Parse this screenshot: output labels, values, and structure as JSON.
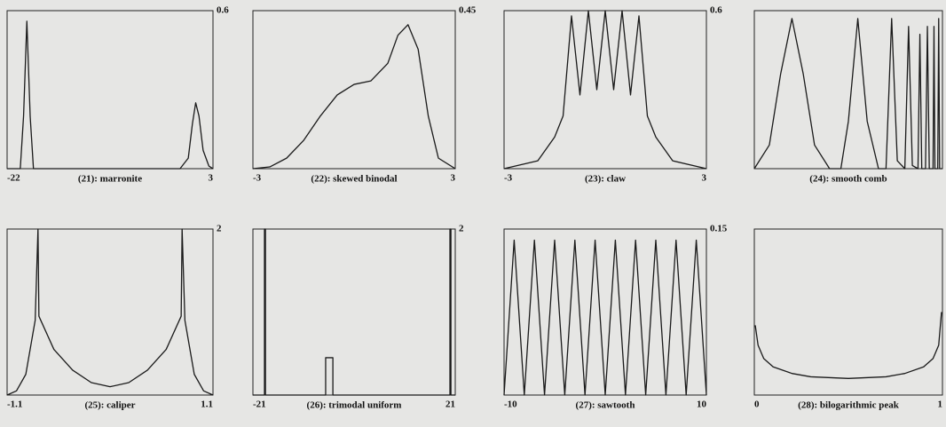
{
  "chart_data": [
    {
      "type": "line",
      "title": "(21): marronite",
      "x": [
        -22,
        -20.4,
        -20.0,
        -19.6,
        -19.2,
        -18.8,
        -17,
        -5,
        -1,
        0,
        0.5,
        0.9,
        1.3,
        1.8,
        2.5,
        3
      ],
      "values": [
        0,
        0,
        0.2,
        0.56,
        0.2,
        0,
        0,
        0,
        0,
        0.04,
        0.17,
        0.25,
        0.2,
        0.07,
        0.01,
        0
      ],
      "xlim": [
        -22,
        3
      ],
      "ylim": [
        0,
        0.6
      ],
      "xticks": [
        -22,
        3
      ],
      "yticks": [
        0.6
      ],
      "color": "#1a1a1a"
    },
    {
      "type": "line",
      "title": "(22): skewed binodal",
      "x": [
        -3,
        -2.5,
        -2,
        -1.5,
        -1,
        -0.5,
        0,
        0.5,
        1,
        1.3,
        1.6,
        1.9,
        2.2,
        2.5,
        3
      ],
      "values": [
        0,
        0.005,
        0.03,
        0.08,
        0.15,
        0.21,
        0.24,
        0.25,
        0.3,
        0.38,
        0.41,
        0.34,
        0.15,
        0.03,
        0
      ],
      "xlim": [
        -3,
        3
      ],
      "ylim": [
        0,
        0.45
      ],
      "xticks": [
        -3,
        3
      ],
      "yticks": [
        0.45
      ],
      "color": "#1a1a1a"
    },
    {
      "type": "line",
      "title": "(23): claw",
      "x": [
        -3,
        -2,
        -1.5,
        -1.25,
        -1,
        -0.75,
        -0.5,
        -0.25,
        0,
        0.25,
        0.5,
        0.75,
        1,
        1.25,
        1.5,
        2,
        3
      ],
      "values": [
        0,
        0.03,
        0.12,
        0.2,
        0.58,
        0.28,
        0.6,
        0.3,
        0.6,
        0.3,
        0.6,
        0.28,
        0.58,
        0.2,
        0.12,
        0.03,
        0
      ],
      "xlim": [
        -3,
        3
      ],
      "ylim": [
        0,
        0.6
      ],
      "xticks": [
        -3,
        3
      ],
      "yticks": [
        0.6
      ],
      "color": "#1a1a1a"
    },
    {
      "type": "line",
      "title": "(24): smooth comb",
      "x": [
        0,
        0.08,
        0.14,
        0.2,
        0.26,
        0.32,
        0.4,
        0.46,
        0.5,
        0.55,
        0.6,
        0.66,
        0.7,
        0.73,
        0.76,
        0.8,
        0.82,
        0.84,
        0.87,
        0.88,
        0.89,
        0.91,
        0.92,
        0.93,
        0.95,
        0.955,
        0.96,
        0.975,
        0.98,
        0.985,
        1
      ],
      "values": [
        0,
        0.15,
        0.6,
        0.95,
        0.6,
        0.15,
        0,
        0,
        0.3,
        0.95,
        0.3,
        0,
        0,
        0.95,
        0.05,
        0,
        0.9,
        0.02,
        0,
        0.85,
        0,
        0,
        0.9,
        0,
        0,
        0.9,
        0,
        0,
        0.95,
        0,
        0
      ],
      "xlim": [
        0,
        1
      ],
      "ylim": [
        0,
        1
      ],
      "color": "#1a1a1a"
    },
    {
      "type": "line",
      "title": "(25): caliper",
      "x": [
        -1.1,
        -1,
        -0.9,
        -0.8,
        -0.77,
        -0.76,
        -0.6,
        -0.4,
        -0.2,
        0,
        0.2,
        0.4,
        0.6,
        0.76,
        0.77,
        0.8,
        0.9,
        1,
        1.1
      ],
      "values": [
        0,
        0.05,
        0.25,
        0.9,
        2,
        0.95,
        0.55,
        0.3,
        0.15,
        0.1,
        0.15,
        0.3,
        0.55,
        0.95,
        2,
        0.9,
        0.25,
        0.05,
        0
      ],
      "xlim": [
        -1.1,
        1.1
      ],
      "ylim": [
        0,
        2
      ],
      "xticks": [
        -1.1,
        1.1
      ],
      "yticks": [
        2
      ],
      "color": "#1a1a1a"
    },
    {
      "type": "line",
      "title": "(26): trimodal uniform",
      "x": [
        -21,
        -18.6,
        -18.6,
        -18.4,
        -18.4,
        -5.9,
        -5.9,
        -4.4,
        -4.4,
        19.9,
        19.9,
        20.1,
        20.1,
        21
      ],
      "values": [
        0,
        0,
        2,
        2,
        0,
        0,
        0.45,
        0.45,
        0,
        0,
        2,
        2,
        0,
        0
      ],
      "xlim": [
        -21,
        21
      ],
      "ylim": [
        0,
        2
      ],
      "xticks": [
        -21,
        21
      ],
      "yticks": [
        2
      ],
      "color": "#1a1a1a"
    },
    {
      "type": "line",
      "title": "(27): sawtooth",
      "x": [
        -10,
        -9,
        -8,
        -7,
        -6,
        -5,
        -4,
        -3,
        -2,
        -1,
        0,
        1,
        2,
        3,
        4,
        5,
        6,
        7,
        8,
        9,
        10
      ],
      "values": [
        0,
        0.14,
        0,
        0.14,
        0,
        0.14,
        0,
        0.14,
        0,
        0.14,
        0,
        0.14,
        0,
        0.14,
        0,
        0.14,
        0,
        0.14,
        0,
        0.14,
        0
      ],
      "xlim": [
        -10,
        10
      ],
      "ylim": [
        0,
        0.15
      ],
      "xticks": [
        -10,
        10
      ],
      "yticks": [
        0.15
      ],
      "color": "#1a1a1a"
    },
    {
      "type": "line",
      "title": "(28): bilogarithmic peak",
      "x": [
        0.005,
        0.02,
        0.05,
        0.1,
        0.2,
        0.3,
        0.5,
        0.7,
        0.8,
        0.9,
        0.95,
        0.98,
        0.995
      ],
      "values": [
        0.42,
        0.3,
        0.22,
        0.17,
        0.13,
        0.11,
        0.1,
        0.11,
        0.13,
        0.17,
        0.22,
        0.3,
        0.5
      ],
      "xlim": [
        0,
        1
      ],
      "ylim": [
        0,
        1
      ],
      "xticks": [
        0,
        1
      ],
      "color": "#1a1a1a"
    }
  ]
}
